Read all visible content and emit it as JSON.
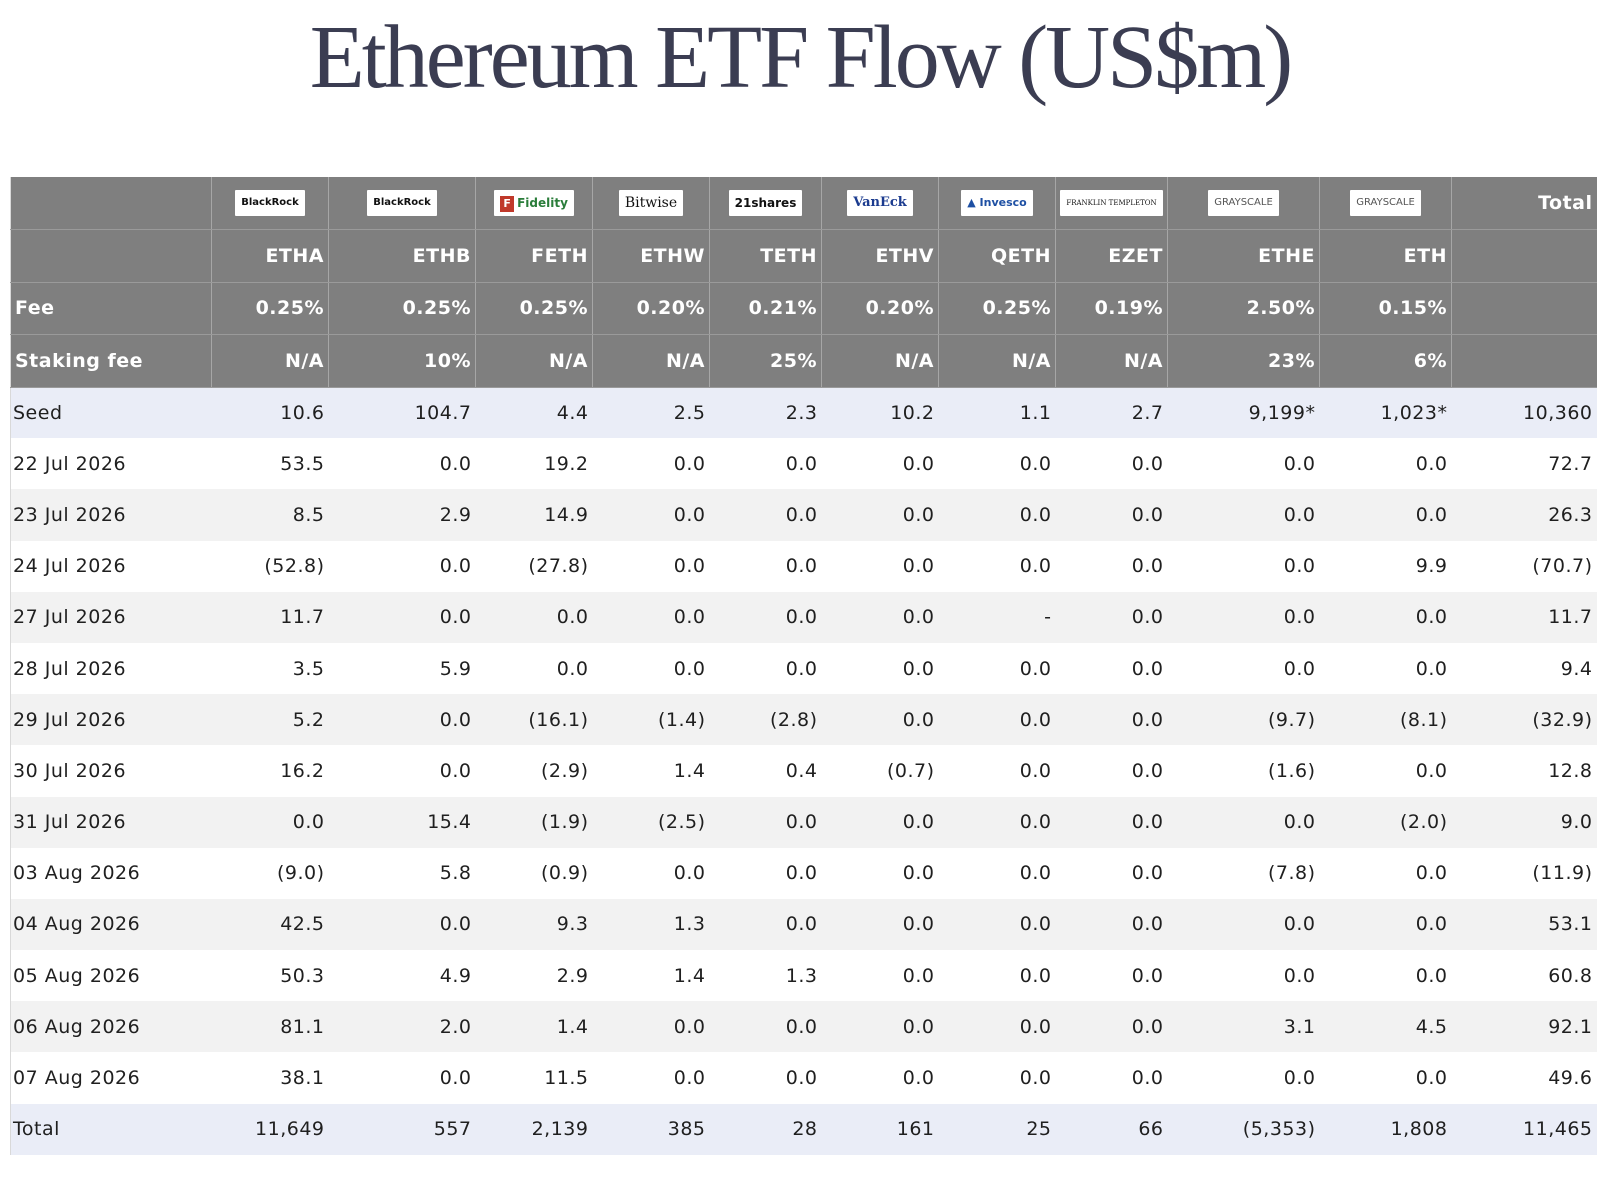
{
  "title": "Ethereum ETF Flow (US$m)",
  "colors": {
    "title": "#3b3d52",
    "header_bg": "#7f7f7f",
    "seed_total_bg": "#eaedf7",
    "alt_row_bg": "#f2f2f2",
    "negative": "#d9413a",
    "zero": "#c4c4c4"
  },
  "issuer_logos": [
    "BlackRock",
    "BlackRock",
    "Fidelity",
    "Bitwise",
    "21shares",
    "VanEck",
    "Invesco",
    "FRANKLIN TEMPLETON",
    "GRAYSCALE",
    "GRAYSCALE"
  ],
  "total_header": "Total",
  "tickers": [
    "ETHA",
    "ETHB",
    "FETH",
    "ETHW",
    "TETH",
    "ETHV",
    "QETH",
    "EZET",
    "ETHE",
    "ETH"
  ],
  "fee_label": "Fee",
  "fees": [
    "0.25%",
    "0.25%",
    "0.25%",
    "0.20%",
    "0.21%",
    "0.20%",
    "0.25%",
    "0.19%",
    "2.50%",
    "0.15%"
  ],
  "staking_label": "Staking fee",
  "staking_fees": [
    "N/A",
    "10%",
    "N/A",
    "N/A",
    "25%",
    "N/A",
    "N/A",
    "N/A",
    "23%",
    "6%"
  ],
  "rows": [
    {
      "label": "Seed",
      "values": [
        "10.6",
        "104.7",
        "4.4",
        "2.5",
        "2.3",
        "10.2",
        "1.1",
        "2.7",
        "9,199*",
        "1,023*"
      ],
      "total": "10,360"
    },
    {
      "label": "22 Jul 2026",
      "values": [
        "53.5",
        "0.0",
        "19.2",
        "0.0",
        "0.0",
        "0.0",
        "0.0",
        "0.0",
        "0.0",
        "0.0"
      ],
      "total": "72.7"
    },
    {
      "label": "23 Jul 2026",
      "values": [
        "8.5",
        "2.9",
        "14.9",
        "0.0",
        "0.0",
        "0.0",
        "0.0",
        "0.0",
        "0.0",
        "0.0"
      ],
      "total": "26.3"
    },
    {
      "label": "24 Jul 2026",
      "values": [
        "(52.8)",
        "0.0",
        "(27.8)",
        "0.0",
        "0.0",
        "0.0",
        "0.0",
        "0.0",
        "0.0",
        "9.9"
      ],
      "total": "(70.7)"
    },
    {
      "label": "27 Jul 2026",
      "values": [
        "11.7",
        "0.0",
        "0.0",
        "0.0",
        "0.0",
        "0.0",
        "-",
        "0.0",
        "0.0",
        "0.0"
      ],
      "total": "11.7"
    },
    {
      "label": "28 Jul 2026",
      "values": [
        "3.5",
        "5.9",
        "0.0",
        "0.0",
        "0.0",
        "0.0",
        "0.0",
        "0.0",
        "0.0",
        "0.0"
      ],
      "total": "9.4"
    },
    {
      "label": "29 Jul 2026",
      "values": [
        "5.2",
        "0.0",
        "(16.1)",
        "(1.4)",
        "(2.8)",
        "0.0",
        "0.0",
        "0.0",
        "(9.7)",
        "(8.1)"
      ],
      "total": "(32.9)"
    },
    {
      "label": "30 Jul 2026",
      "values": [
        "16.2",
        "0.0",
        "(2.9)",
        "1.4",
        "0.4",
        "(0.7)",
        "0.0",
        "0.0",
        "(1.6)",
        "0.0"
      ],
      "total": "12.8"
    },
    {
      "label": "31 Jul 2026",
      "values": [
        "0.0",
        "15.4",
        "(1.9)",
        "(2.5)",
        "0.0",
        "0.0",
        "0.0",
        "0.0",
        "0.0",
        "(2.0)"
      ],
      "total": "9.0"
    },
    {
      "label": "03 Aug 2026",
      "values": [
        "(9.0)",
        "5.8",
        "(0.9)",
        "0.0",
        "0.0",
        "0.0",
        "0.0",
        "0.0",
        "(7.8)",
        "0.0"
      ],
      "total": "(11.9)"
    },
    {
      "label": "04 Aug 2026",
      "values": [
        "42.5",
        "0.0",
        "9.3",
        "1.3",
        "0.0",
        "0.0",
        "0.0",
        "0.0",
        "0.0",
        "0.0"
      ],
      "total": "53.1"
    },
    {
      "label": "05 Aug 2026",
      "values": [
        "50.3",
        "4.9",
        "2.9",
        "1.4",
        "1.3",
        "0.0",
        "0.0",
        "0.0",
        "0.0",
        "0.0"
      ],
      "total": "60.8"
    },
    {
      "label": "06 Aug 2026",
      "values": [
        "81.1",
        "2.0",
        "1.4",
        "0.0",
        "0.0",
        "0.0",
        "0.0",
        "0.0",
        "3.1",
        "4.5"
      ],
      "total": "92.1"
    },
    {
      "label": "07 Aug 2026",
      "values": [
        "38.1",
        "0.0",
        "11.5",
        "0.0",
        "0.0",
        "0.0",
        "0.0",
        "0.0",
        "0.0",
        "0.0"
      ],
      "total": "49.6"
    },
    {
      "label": "Total",
      "values": [
        "11,649",
        "557",
        "2,139",
        "385",
        "28",
        "161",
        "25",
        "66",
        "(5,353)",
        "1,808"
      ],
      "total": "11,465"
    }
  ]
}
